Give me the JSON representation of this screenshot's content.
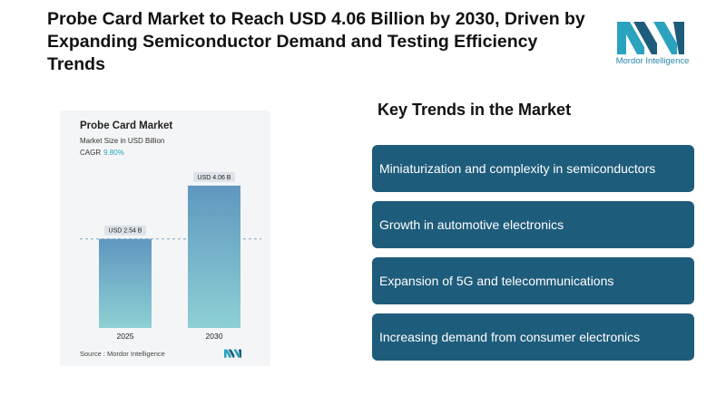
{
  "headline": "Probe Card Market to Reach USD 4.06 Billion by 2030, Driven by Expanding Semiconductor Demand and Testing Efficiency Trends",
  "logo": {
    "icon": "mordor-intelligence-logo",
    "text": "Mordor Intelligence",
    "colors": [
      "#2ba3bf",
      "#1e5c7b"
    ]
  },
  "chart": {
    "title": "Probe Card Market",
    "subtitle": "Market Size in USD Billion",
    "cagr_label": "CAGR",
    "cagr_value": "9.80%",
    "source": "Source : Mordor Intelligence"
  },
  "chart_data": {
    "type": "bar",
    "title": "Probe Card Market",
    "subtitle": "Market Size in USD Billion",
    "categories": [
      "2025",
      "2030"
    ],
    "values": [
      2.54,
      4.06
    ],
    "data_labels": [
      "USD 2.54 B",
      "USD 4.06 B"
    ],
    "ylim": [
      0,
      4.5
    ],
    "grid": false,
    "reference_line": {
      "value": 2.54,
      "style": "dashed"
    },
    "colors": {
      "bar_top": "#5f97bf",
      "bar_bottom": "#8dd0d4",
      "label_bg": "#dde3e8"
    }
  },
  "trends": {
    "title": "Key Trends in the Market",
    "items": [
      "Miniaturization and complexity in semiconductors",
      "Growth in automotive electronics",
      "Expansion of 5G and telecommunications",
      "Increasing demand from consumer electronics"
    ],
    "box_color": "#1e5c7b"
  }
}
